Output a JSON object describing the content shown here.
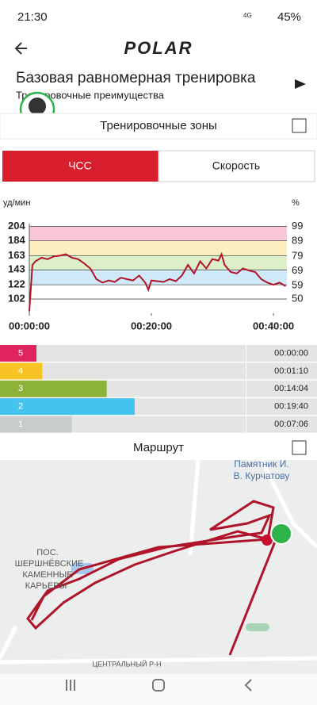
{
  "status_bar": {
    "time": "21:30",
    "network": "4G",
    "battery": "45%"
  },
  "header": {
    "logo": "POLAR",
    "title": "Базовая равномерная тренировка",
    "subtitle": "Тренировочные преимущества"
  },
  "zones_section": {
    "title": "Тренировочные зоны",
    "tabs": [
      "ЧСС",
      "Скорость"
    ]
  },
  "chart_data": {
    "type": "line",
    "y_label": "уд/мин",
    "y2_label": "%",
    "x": [
      0,
      0.5,
      1,
      2,
      3,
      4,
      5,
      6,
      7,
      8,
      9,
      10,
      11,
      12,
      13,
      14,
      15,
      16,
      17,
      18,
      19,
      19.5,
      20,
      21,
      22,
      23,
      24,
      25,
      26,
      27,
      28,
      29,
      30,
      31,
      31.5,
      32,
      33,
      34,
      35,
      36,
      37,
      38,
      39,
      40,
      41,
      42
    ],
    "series": [
      {
        "color": "#b0132b",
        "values": [
          85,
          150,
          155,
          160,
          158,
          162,
          163,
          165,
          160,
          158,
          152,
          145,
          130,
          125,
          128,
          126,
          132,
          130,
          128,
          135,
          125,
          115,
          128,
          127,
          126,
          130,
          127,
          135,
          150,
          138,
          155,
          145,
          158,
          156,
          165,
          150,
          140,
          138,
          145,
          142,
          140,
          130,
          125,
          122,
          125,
          120
        ]
      }
    ],
    "xlim": [
      0,
      42.2
    ],
    "xticks": [
      {
        "value": 0,
        "label": "00:00:00"
      },
      {
        "value": 20,
        "label": "00:20:00"
      },
      {
        "value": 40,
        "label": "00:40:00"
      }
    ],
    "ylim": [
      82,
      208
    ],
    "yticks": [
      102,
      122,
      143,
      163,
      184,
      204
    ],
    "y2lim": [
      40.4,
      100.9
    ],
    "y2ticks": [
      50,
      59,
      69,
      79,
      89,
      99
    ],
    "band_colors": [
      "#cfe9f8",
      "#dcefc9",
      "#fbefc0",
      "#f8c6d6"
    ]
  },
  "zones": [
    {
      "zone": 5,
      "duration": "00:00:00",
      "color": "#e0245e"
    },
    {
      "zone": 4,
      "duration": "00:01:10",
      "color": "#f7c325"
    },
    {
      "zone": 3,
      "duration": "00:14:04",
      "color": "#8db33a"
    },
    {
      "zone": 2,
      "duration": "00:19:40",
      "color": "#45c3ef"
    },
    {
      "zone": 1,
      "duration": "00:07:06",
      "color": "#c9cccc"
    }
  ],
  "route": {
    "title": "Маршрут",
    "map_labels": [
      "Памятник И.",
      "В. Курчатову",
      "ПОС.",
      "ШЕРШНЁВСКИЕ",
      "КАМЕННЫЕ",
      "КАРЬЕРЫ",
      "ЦЕНТРАЛЬНЫЙ Р-Н"
    ]
  }
}
